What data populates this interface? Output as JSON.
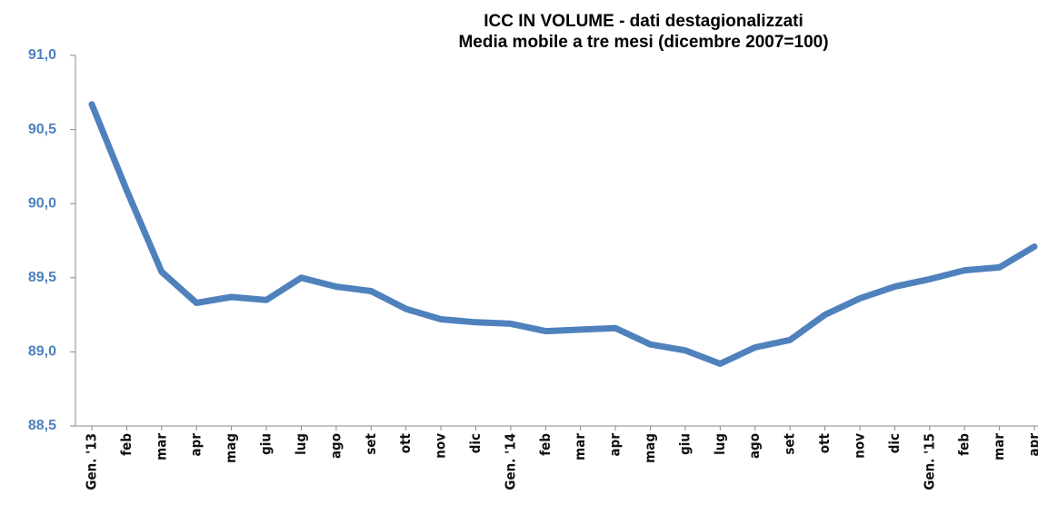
{
  "chart_data": {
    "type": "line",
    "title": "ICC IN VOLUME - dati destagionalizzati",
    "subtitle": "Media mobile a tre mesi (dicembre 2007=100)",
    "categories": [
      "Gen. '13",
      "feb",
      "mar",
      "apr",
      "mag",
      "giu",
      "lug",
      "ago",
      "set",
      "ott",
      "nov",
      "dic",
      "Gen. '14",
      "feb",
      "mar",
      "apr",
      "mag",
      "giu",
      "lug",
      "ago",
      "set",
      "ott",
      "nov",
      "dic",
      "Gen. '15",
      "feb",
      "mar",
      "apr"
    ],
    "values": [
      90.67,
      90.09,
      89.54,
      89.33,
      89.37,
      89.35,
      89.5,
      89.44,
      89.41,
      89.29,
      89.22,
      89.2,
      89.19,
      89.14,
      89.15,
      89.16,
      89.05,
      89.01,
      88.92,
      89.03,
      89.08,
      89.25,
      89.36,
      89.44,
      89.49,
      89.55,
      89.57,
      89.71
    ],
    "color": "#4f81bd",
    "ylim": [
      88.5,
      91.0
    ],
    "yticks": [
      {
        "value": 88.5,
        "label": "88,5"
      },
      {
        "value": 89.0,
        "label": "89,0"
      },
      {
        "value": 89.5,
        "label": "89,5"
      },
      {
        "value": 90.0,
        "label": "90,0"
      },
      {
        "value": 90.5,
        "label": "90,5"
      },
      {
        "value": 91.0,
        "label": "91,0"
      }
    ],
    "grid": false
  }
}
